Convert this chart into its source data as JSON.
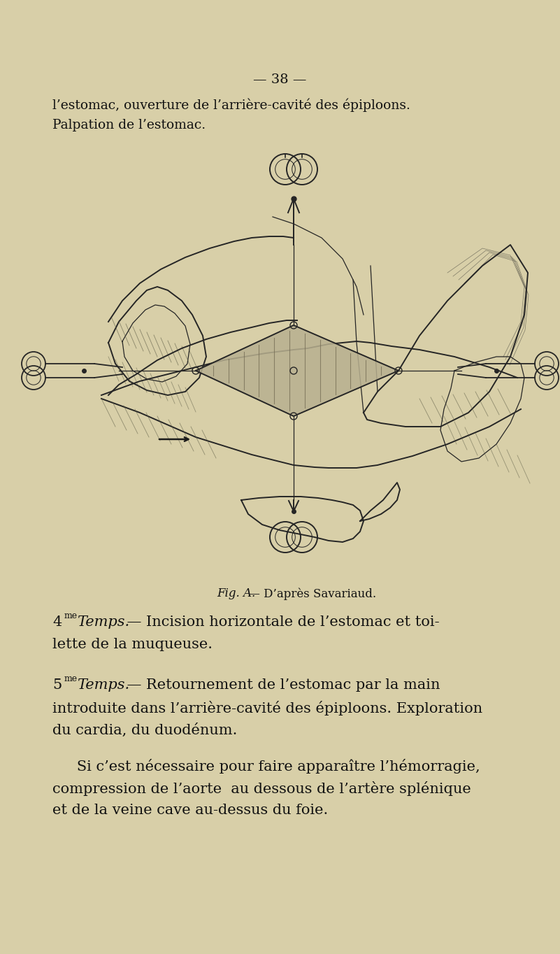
{
  "bg_color": "#d8cfa8",
  "page_number": "— 38 —",
  "header_line1": "l’estomac, ouverture de l’arrière-cavité des épiploons.",
  "header_line2": "Palpation de l’estomac.",
  "fig_caption_italic": "Fig. A.",
  "fig_caption_rest": " — D’après Savariaud.",
  "para1_num": "4",
  "para1_super": "me",
  "para1_word": "Temps.",
  "para1_rest": " — Incision horizontale de l’estomac et toi-",
  "para1_line2": "lette de la muqueuse.",
  "para2_num": "5",
  "para2_super": "me",
  "para2_word": "Temps.",
  "para2_rest": " — Retournement de l’estomac par la main",
  "para2_line2": "introduite dans l’arrière-cavité des épiploons. Exploration",
  "para2_line3": "du cardia, du duodénum.",
  "para3_line1": "   Si c’est nécessaire pour faire apparaître l’hémorragie,",
  "para3_line2": "compression de l’aorte  au dessous de l’artère splénique",
  "para3_line3": "et de la veine cave au-dessus du foie.",
  "text_color": "#111111",
  "draw_color": "#252525",
  "shade_color": "#b8b090",
  "tissue_shade": "#c5bc9a"
}
